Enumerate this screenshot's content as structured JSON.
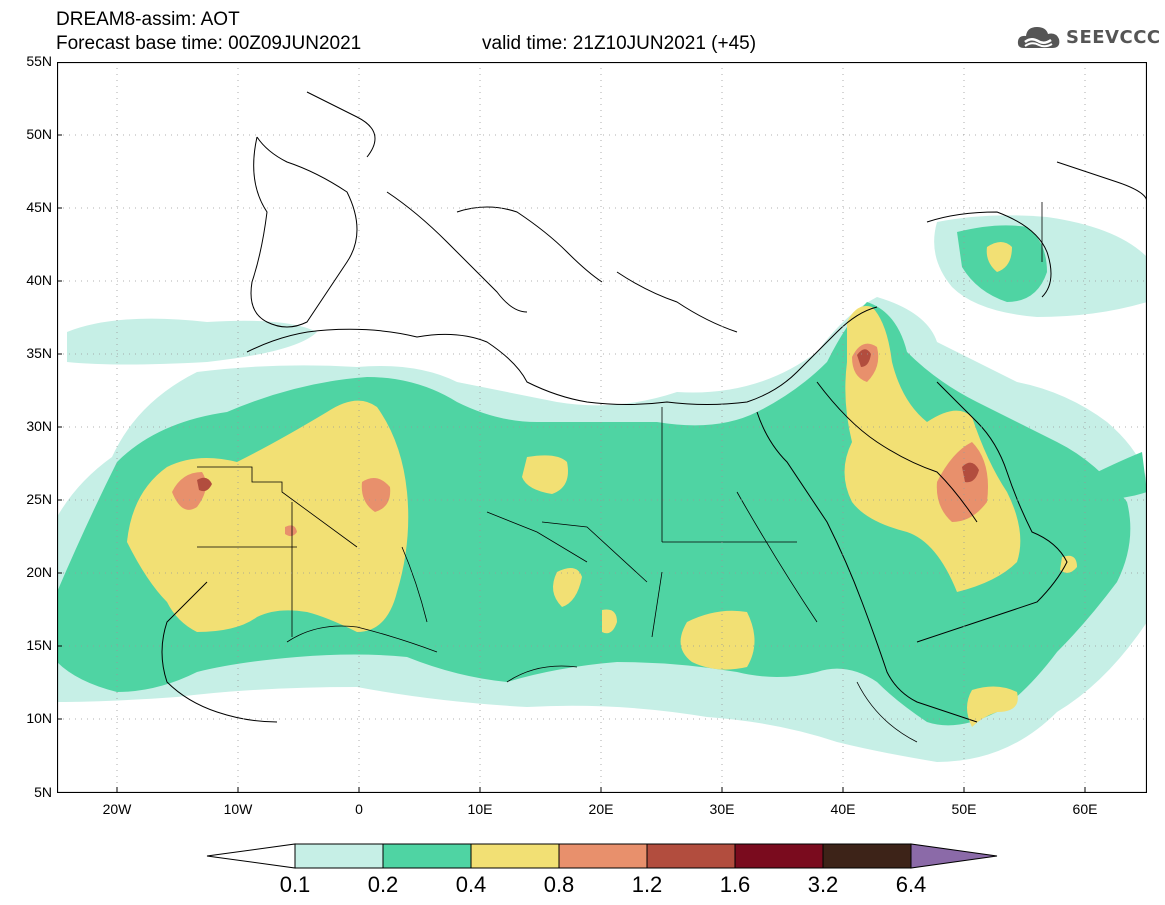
{
  "header": {
    "title_line1": "DREAM8-assim: AOT",
    "title_line2": "Forecast base time: 00Z09JUN2021",
    "valid_time": "valid time: 21Z10JUN2021 (+45)"
  },
  "logo": {
    "text": "SEEVCCC",
    "icon": "cloud-icon"
  },
  "map": {
    "variable": "AOT",
    "lon_range": [
      -25,
      65
    ],
    "lat_range": [
      5,
      55
    ],
    "y_ticks": [
      "55N",
      "50N",
      "45N",
      "40N",
      "35N",
      "30N",
      "25N",
      "20N",
      "15N",
      "10N",
      "5N"
    ],
    "x_ticks": [
      "20W",
      "10W",
      "0",
      "10E",
      "20E",
      "30E",
      "40E",
      "50E",
      "60E"
    ]
  },
  "colorbar": {
    "levels": [
      "0.1",
      "0.2",
      "0.4",
      "0.8",
      "1.2",
      "1.6",
      "3.2",
      "6.4"
    ],
    "colors": [
      "#c6efe6",
      "#4fd4a3",
      "#f2e074",
      "#e8906c",
      "#b24d3e",
      "#7a0b1e",
      "#3d2318",
      "#8b6aa8"
    ],
    "lower_extend_color": "#ffffff"
  }
}
